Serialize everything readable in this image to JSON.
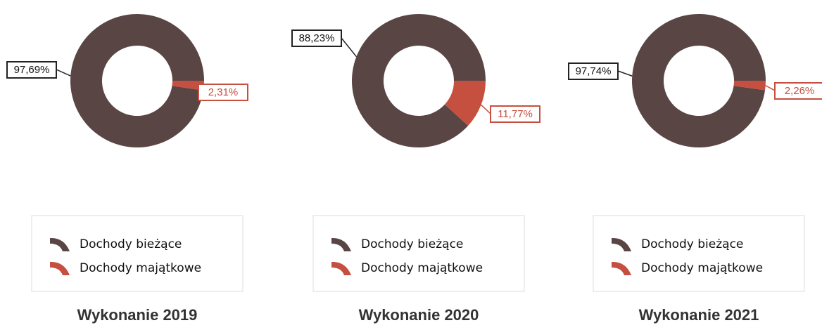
{
  "chart_data": [
    {
      "type": "pie",
      "title": "Wykonanie 2019",
      "donut": true,
      "categories": [
        "Dochody bieżące",
        "Dochody majątkowe"
      ],
      "values": [
        97.69,
        2.31
      ],
      "value_labels": [
        "97,69%",
        "2,31%"
      ],
      "colors": [
        "#5a4545",
        "#c5503f"
      ]
    },
    {
      "type": "pie",
      "title": "Wykonanie 2020",
      "donut": true,
      "categories": [
        "Dochody bieżące",
        "Dochody majątkowe"
      ],
      "values": [
        88.23,
        11.77
      ],
      "value_labels": [
        "88,23%",
        "11,77%"
      ],
      "colors": [
        "#5a4545",
        "#c5503f"
      ]
    },
    {
      "type": "pie",
      "title": "Wykonanie 2021",
      "donut": true,
      "categories": [
        "Dochody bieżące",
        "Dochody majątkowe"
      ],
      "values": [
        97.74,
        2.26
      ],
      "value_labels": [
        "97,74%",
        "2,26%"
      ],
      "colors": [
        "#5a4545",
        "#c5503f"
      ]
    }
  ]
}
